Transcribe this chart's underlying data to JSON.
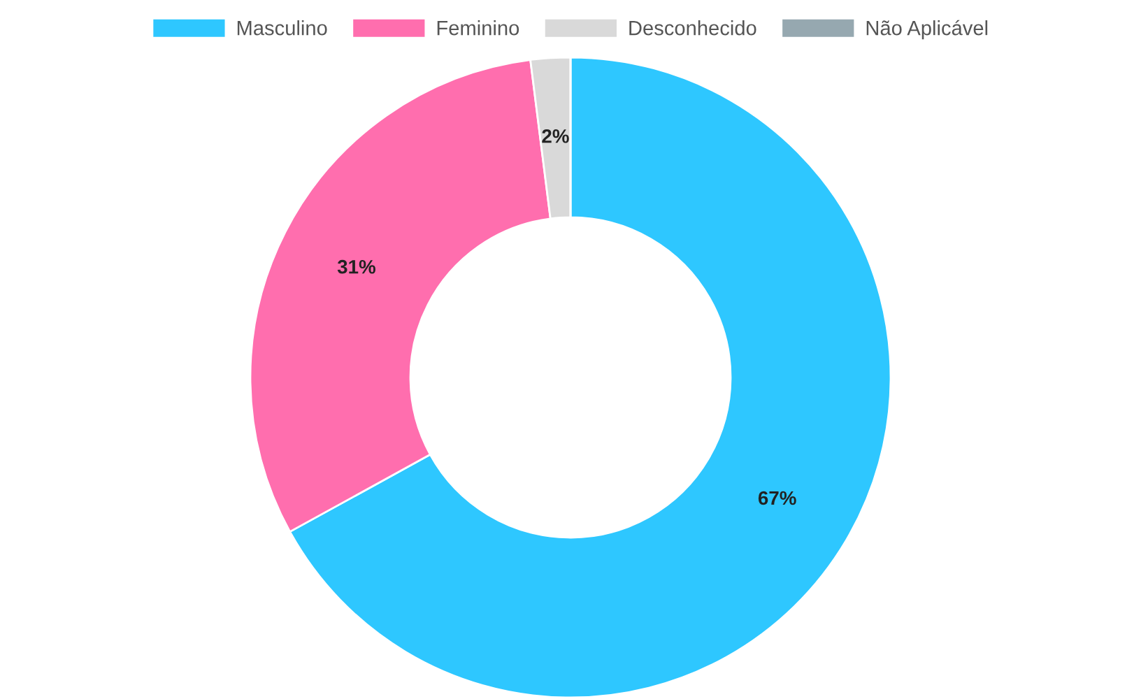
{
  "chart_data": {
    "type": "donut",
    "categories": [
      "Masculino",
      "Feminino",
      "Desconhecido",
      "Não Aplicável"
    ],
    "values": [
      67,
      31,
      2,
      0
    ],
    "colors": [
      "#2ec7ff",
      "#ff6eae",
      "#d9d9d9",
      "#96a8b0"
    ],
    "value_labels": [
      "67%",
      "31%",
      "2%",
      null
    ],
    "legend": "top"
  }
}
